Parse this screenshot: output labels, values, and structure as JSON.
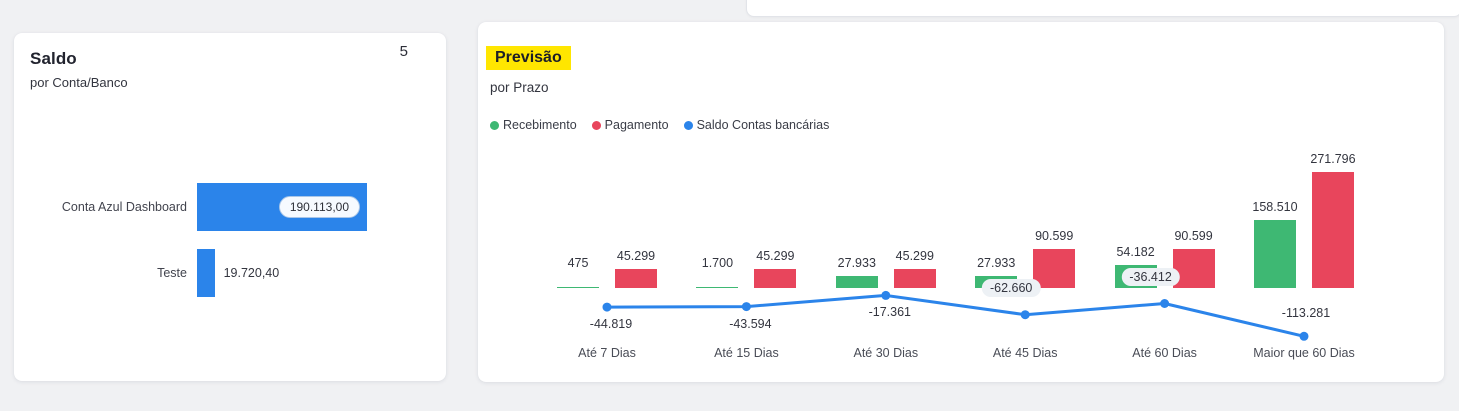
{
  "page": {
    "background": "#f0f1f3"
  },
  "saldo_card": {
    "title": "Saldo",
    "subtitle": "por Conta/Banco",
    "count_badge": "5"
  },
  "previsao_card": {
    "title": "Previsão",
    "title_highlight_color": "#ffe600",
    "subtitle": "por Prazo"
  },
  "chart_data": [
    {
      "type": "bar",
      "orientation": "horizontal",
      "title": "Saldo",
      "subtitle": "por Conta/Banco",
      "categories": [
        "Conta Azul Dashboard",
        "Teste"
      ],
      "values": [
        190113.0,
        19720.4
      ],
      "value_labels": [
        "190.113,00",
        "19.720,40"
      ],
      "value_label_styles": [
        "pill-inside-bar",
        "outside"
      ],
      "bar_color": "#2b84ea",
      "xlim": [
        0,
        200000
      ],
      "grid": false
    },
    {
      "type": "combo-bar-line",
      "title": "Previsão",
      "subtitle": "por Prazo",
      "legend_position": "top-left",
      "grid": false,
      "categories": [
        "Até 7 Dias",
        "Até 15 Dias",
        "Até 30 Dias",
        "Até 45 Dias",
        "Até 60 Dias",
        "Maior que 60 Dias"
      ],
      "series": [
        {
          "name": "Recebimento",
          "type": "bar",
          "color": "#3eb873",
          "values": [
            475,
            1700,
            27933,
            27933,
            54182,
            158510
          ],
          "value_labels": [
            "475",
            "1.700",
            "27.933",
            "27.933",
            "54.182",
            "158.510"
          ]
        },
        {
          "name": "Pagamento",
          "type": "bar",
          "color": "#e8455c",
          "values": [
            45299,
            45299,
            45299,
            90599,
            90599,
            271796
          ],
          "value_labels": [
            "45.299",
            "45.299",
            "45.299",
            "90.599",
            "90.599",
            "271.796"
          ]
        },
        {
          "name": "Saldo Contas bancárias",
          "type": "line",
          "color": "#2b84ea",
          "values": [
            -44819,
            -43594,
            -17361,
            -62660,
            -36412,
            -113281
          ],
          "value_labels": [
            "-44.819",
            "-43.594",
            "-17.361",
            "-62.660",
            "-36.412",
            "-113.281"
          ],
          "label_placement": [
            "below",
            "below",
            "below",
            "above-pill",
            "above-pill",
            "above"
          ]
        }
      ],
      "ylim": [
        -120000,
        285000
      ]
    }
  ]
}
